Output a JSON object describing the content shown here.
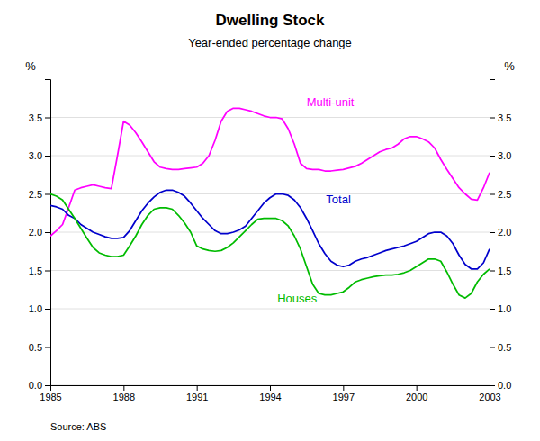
{
  "chart_data": {
    "type": "line",
    "title": "Dwelling Stock",
    "subtitle": "Year-ended percentage change",
    "ylabel": "%",
    "y2label": "%",
    "source": "Source: ABS",
    "xlim": [
      1985,
      2003
    ],
    "xticks": [
      1985,
      1988,
      1991,
      1994,
      1997,
      2000,
      2003
    ],
    "ylim": [
      0.0,
      4.0
    ],
    "yticks": [
      {
        "value": 0.0,
        "label": "0.0"
      },
      {
        "value": 0.5,
        "label": "0.5"
      },
      {
        "value": 1.0,
        "label": "1.0"
      },
      {
        "value": 1.5,
        "label": "1.5"
      },
      {
        "value": 2.0,
        "label": "2.0"
      },
      {
        "value": 2.5,
        "label": "2.5"
      },
      {
        "value": 3.0,
        "label": "3.0"
      },
      {
        "value": 3.5,
        "label": "3.5"
      }
    ],
    "y2lim": [
      0.0,
      4.0
    ],
    "y2ticks": [
      {
        "value": 0.0,
        "label": "0.0"
      },
      {
        "value": 0.5,
        "label": "0.5"
      },
      {
        "value": 1.0,
        "label": "1.0"
      },
      {
        "value": 1.5,
        "label": "1.5"
      },
      {
        "value": 2.0,
        "label": "2.0"
      },
      {
        "value": 2.5,
        "label": "2.5"
      },
      {
        "value": 3.0,
        "label": "3.0"
      },
      {
        "value": 3.5,
        "label": "3.5"
      }
    ],
    "grid": "y",
    "x": [
      1985.0,
      1985.25,
      1985.5,
      1985.75,
      1986.0,
      1986.25,
      1986.5,
      1986.75,
      1987.0,
      1987.25,
      1987.5,
      1987.75,
      1988.0,
      1988.25,
      1988.5,
      1988.75,
      1989.0,
      1989.25,
      1989.5,
      1989.75,
      1990.0,
      1990.25,
      1990.5,
      1990.75,
      1991.0,
      1991.25,
      1991.5,
      1991.75,
      1992.0,
      1992.25,
      1992.5,
      1992.75,
      1993.0,
      1993.25,
      1993.5,
      1993.75,
      1994.0,
      1994.25,
      1994.5,
      1994.75,
      1995.0,
      1995.25,
      1995.5,
      1995.75,
      1996.0,
      1996.25,
      1996.5,
      1996.75,
      1997.0,
      1997.25,
      1997.5,
      1997.75,
      1998.0,
      1998.25,
      1998.5,
      1998.75,
      1999.0,
      1999.25,
      1999.5,
      1999.75,
      2000.0,
      2000.25,
      2000.5,
      2000.75,
      2001.0,
      2001.25,
      2001.5,
      2001.75,
      2002.0,
      2002.25,
      2002.5,
      2002.75,
      2003.0
    ],
    "series": [
      {
        "color": "#ff00ff",
        "values": [
          1.95,
          2.02,
          2.1,
          2.32,
          2.55,
          2.58,
          2.6,
          2.62,
          2.6,
          2.58,
          2.57,
          3.0,
          3.45,
          3.4,
          3.3,
          3.18,
          3.05,
          2.92,
          2.85,
          2.83,
          2.82,
          2.82,
          2.83,
          2.84,
          2.85,
          2.9,
          3.0,
          3.2,
          3.45,
          3.58,
          3.62,
          3.62,
          3.6,
          3.58,
          3.55,
          3.52,
          3.5,
          3.5,
          3.48,
          3.35,
          3.15,
          2.9,
          2.83,
          2.82,
          2.82,
          2.8,
          2.8,
          2.81,
          2.82,
          2.84,
          2.86,
          2.9,
          2.95,
          3.0,
          3.05,
          3.08,
          3.1,
          3.15,
          3.22,
          3.25,
          3.25,
          3.22,
          3.18,
          3.1,
          2.95,
          2.82,
          2.7,
          2.58,
          2.5,
          2.43,
          2.42,
          2.58,
          2.78
        ]
      },
      {
        "color": "#0000cc",
        "values": [
          2.35,
          2.33,
          2.3,
          2.22,
          2.18,
          2.1,
          2.05,
          2.0,
          1.97,
          1.94,
          1.92,
          1.92,
          1.93,
          2.02,
          2.15,
          2.28,
          2.38,
          2.46,
          2.52,
          2.55,
          2.55,
          2.52,
          2.47,
          2.38,
          2.28,
          2.18,
          2.1,
          2.02,
          1.98,
          1.98,
          2.0,
          2.03,
          2.08,
          2.18,
          2.28,
          2.38,
          2.45,
          2.5,
          2.5,
          2.48,
          2.42,
          2.32,
          2.18,
          2.02,
          1.85,
          1.72,
          1.62,
          1.57,
          1.55,
          1.57,
          1.62,
          1.65,
          1.67,
          1.7,
          1.73,
          1.76,
          1.78,
          1.8,
          1.82,
          1.85,
          1.88,
          1.93,
          1.98,
          2.0,
          2.0,
          1.95,
          1.85,
          1.7,
          1.58,
          1.52,
          1.52,
          1.6,
          1.78
        ]
      },
      {
        "color": "#00bb00",
        "values": [
          2.5,
          2.47,
          2.42,
          2.3,
          2.18,
          2.05,
          1.92,
          1.8,
          1.73,
          1.7,
          1.68,
          1.68,
          1.7,
          1.82,
          1.95,
          2.1,
          2.22,
          2.3,
          2.32,
          2.32,
          2.3,
          2.22,
          2.12,
          2.0,
          1.82,
          1.78,
          1.76,
          1.75,
          1.76,
          1.8,
          1.86,
          1.94,
          2.02,
          2.1,
          2.17,
          2.18,
          2.18,
          2.18,
          2.15,
          2.08,
          1.95,
          1.78,
          1.55,
          1.32,
          1.2,
          1.18,
          1.18,
          1.2,
          1.22,
          1.28,
          1.35,
          1.38,
          1.4,
          1.42,
          1.43,
          1.44,
          1.44,
          1.45,
          1.47,
          1.5,
          1.55,
          1.6,
          1.65,
          1.65,
          1.62,
          1.48,
          1.32,
          1.18,
          1.14,
          1.2,
          1.35,
          1.45,
          1.52
        ]
      }
    ],
    "annotations": [
      {
        "text": "Multi-unit",
        "x": 1995.5,
        "y": 3.65,
        "color": "#ff00ff"
      },
      {
        "text": "Total",
        "x": 1996.3,
        "y": 2.38,
        "color": "#0000cc"
      },
      {
        "text": "Houses",
        "x": 1994.3,
        "y": 1.08,
        "color": "#00bb00"
      }
    ]
  }
}
